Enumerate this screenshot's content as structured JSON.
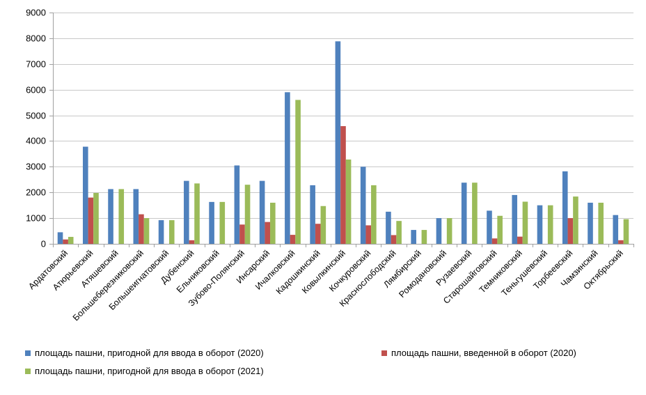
{
  "chart_data": {
    "type": "bar",
    "title": "",
    "xlabel": "",
    "ylabel": "",
    "ylim": [
      0,
      9000
    ],
    "yticks": [
      0,
      1000,
      2000,
      3000,
      4000,
      5000,
      6000,
      7000,
      8000,
      9000
    ],
    "grid": true,
    "legend_position": "bottom",
    "categories": [
      "Ардатовский",
      "Атюрьевский",
      "Атяшевский",
      "Большеберезниковский",
      "Большеигнатовский",
      "Дубенский",
      "Ельниковский",
      "Зубово-Полянский",
      "Инсарский",
      "Ичалковский",
      "Кадошкинский",
      "Ковылкинский",
      "Кочкуровский",
      "Краснослободский",
      "Лямбирский",
      "Ромодановский",
      "Рузаевский",
      "Старошайговский",
      "Темниковский",
      "Теньгушевский",
      "Торбеевский",
      "Чамзинский",
      "Октябрьский"
    ],
    "series": [
      {
        "name": "площадь пашни, пригодной для ввода в оборот (2020)",
        "color": "#4f81bd",
        "values": [
          450,
          3780,
          2130,
          2130,
          920,
          2450,
          1630,
          3050,
          2450,
          5900,
          2280,
          7880,
          3000,
          1250,
          540,
          1000,
          2380,
          1290,
          1900,
          1500,
          2820,
          1600,
          1120
        ]
      },
      {
        "name": "площадь пашни, введенной  в оборот (2020)",
        "color": "#c0504d",
        "values": [
          170,
          1800,
          0,
          1150,
          0,
          140,
          0,
          750,
          850,
          350,
          780,
          4580,
          720,
          340,
          0,
          0,
          0,
          210,
          280,
          0,
          1000,
          0,
          140
        ]
      },
      {
        "name": "площадь пашни, пригодной для ввода в оборот (2021)",
        "color": "#9bbb59",
        "values": [
          270,
          1980,
          2130,
          1000,
          920,
          2350,
          1630,
          2300,
          1600,
          5600,
          1470,
          3280,
          2280,
          890,
          540,
          1000,
          2380,
          1090,
          1640,
          1500,
          1840,
          1600,
          960
        ]
      }
    ]
  }
}
